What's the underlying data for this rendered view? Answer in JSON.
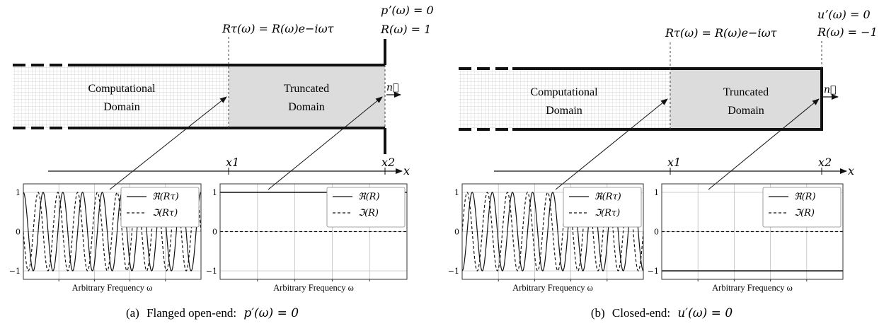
{
  "panels": [
    {
      "id": "a",
      "caption_prefix": "(a)",
      "caption_text": "Flanged open-end:",
      "caption_math": "p′(ω) = 0",
      "left_region": [
        "Computational",
        "Domain"
      ],
      "right_region": [
        "Truncated",
        "Domain"
      ],
      "normal_label": "n⃗",
      "mid_label": "Rτ(ω) = R(ω)e−iωτ",
      "end_label_1": "pʼ(ω) = 0",
      "end_label_2": "R(ω) = 1",
      "axis_x1": "x1",
      "axis_x2": "x2",
      "axis_x": "x",
      "boundary": "flanged-open"
    },
    {
      "id": "b",
      "caption_prefix": "(b)",
      "caption_text": "Closed-end:",
      "caption_math": "u′(ω) = 0",
      "left_region": [
        "Computational",
        "Domain"
      ],
      "right_region": [
        "Truncated",
        "Domain"
      ],
      "normal_label": "n⃗",
      "mid_label": "Rτ(ω) = R(ω)e−iωτ",
      "end_label_1": "uʼ(ω) = 0",
      "end_label_2": "R(ω) = −1",
      "axis_x1": "x1",
      "axis_x2": "x2",
      "axis_x": "x",
      "boundary": "closed"
    }
  ],
  "chart_data": [
    {
      "type": "line",
      "panel": "a-left",
      "xlabel": "Arbitrary Frequency ω",
      "yticks": [
        "1",
        "0",
        "−1"
      ],
      "ylim": [
        -1,
        1
      ],
      "grid": true,
      "legend_placement": "top-right",
      "series": [
        {
          "name": "ℜ(Rτ)",
          "style": "solid",
          "function": "cos",
          "cycles": 9
        },
        {
          "name": "ℑ(Rτ)",
          "style": "dashed",
          "function": "-sin",
          "cycles": 9
        }
      ]
    },
    {
      "type": "line",
      "panel": "a-right",
      "xlabel": "Arbitrary Frequency ω",
      "yticks": [
        "1",
        "0",
        "−1"
      ],
      "ylim": [
        -1,
        1
      ],
      "grid": true,
      "legend_placement": "top-right",
      "series": [
        {
          "name": "ℜ(R)",
          "style": "solid",
          "value": 1
        },
        {
          "name": "ℑ(R)",
          "style": "dashed",
          "value": 0
        }
      ]
    },
    {
      "type": "line",
      "panel": "b-left",
      "xlabel": "Arbitrary Frequency ω",
      "yticks": [
        "1",
        "0",
        "−1"
      ],
      "ylim": [
        -1,
        1
      ],
      "grid": true,
      "legend_placement": "top-right",
      "series": [
        {
          "name": "ℜ(Rτ)",
          "style": "solid",
          "function": "-cos",
          "cycles": 9
        },
        {
          "name": "ℑ(Rτ)",
          "style": "dashed",
          "function": "sin",
          "cycles": 9
        }
      ]
    },
    {
      "type": "line",
      "panel": "b-right",
      "xlabel": "Arbitrary Frequency ω",
      "yticks": [
        "1",
        "0",
        "−1"
      ],
      "ylim": [
        -1,
        1
      ],
      "grid": true,
      "legend_placement": "top-right",
      "series": [
        {
          "name": "ℜ(R)",
          "style": "solid",
          "value": -1
        },
        {
          "name": "ℑ(R)",
          "style": "dashed",
          "value": 0
        }
      ]
    }
  ],
  "colors": {
    "ink": "#111111",
    "truncated_fill": "#dcdcdc",
    "mesh": "#c8c8c8",
    "grid": "#bfbfbf"
  }
}
